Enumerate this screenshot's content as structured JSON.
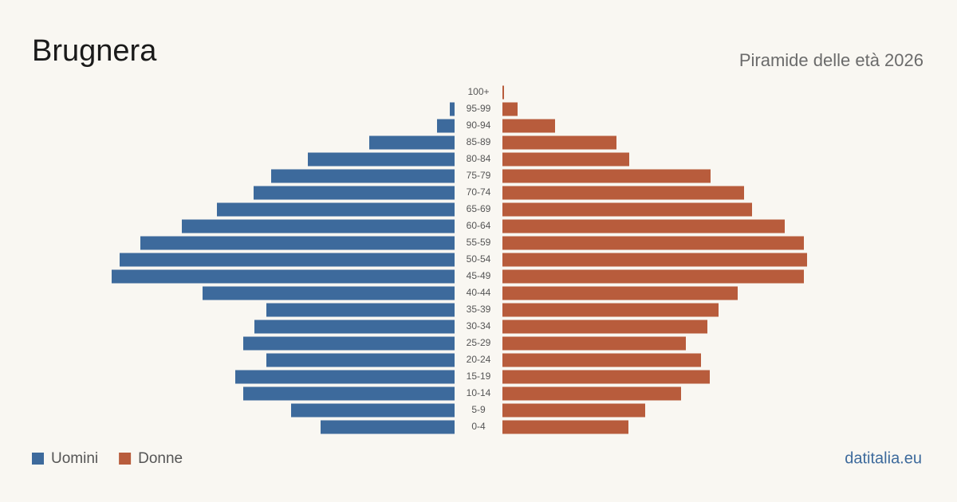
{
  "chart_data": {
    "type": "pyramid",
    "title": "Brugnera",
    "subtitle": "Piramide delle età 2026",
    "source": "datitalia.eu",
    "categories": [
      "100+",
      "95-99",
      "90-94",
      "85-89",
      "80-84",
      "75-79",
      "70-74",
      "65-69",
      "60-64",
      "55-59",
      "50-54",
      "45-49",
      "40-44",
      "35-39",
      "30-34",
      "25-29",
      "20-24",
      "15-19",
      "10-14",
      "5-9",
      "0-4"
    ],
    "series": [
      {
        "name": "Uomini",
        "color": "#3d6a9c",
        "values": [
          0,
          6,
          22,
          107,
          184,
          230,
          252,
          298,
          342,
          394,
          420,
          430,
          316,
          236,
          251,
          265,
          236,
          275,
          265,
          205,
          168
        ]
      },
      {
        "name": "Donne",
        "color": "#b85c3c",
        "values": [
          2,
          19,
          66,
          143,
          159,
          261,
          303,
          313,
          354,
          378,
          382,
          378,
          295,
          271,
          257,
          230,
          249,
          260,
          224,
          179,
          158
        ]
      }
    ]
  }
}
